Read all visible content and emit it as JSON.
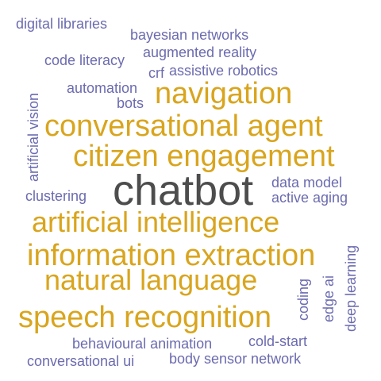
{
  "cloud": {
    "colors": {
      "main": "#4d4d4d",
      "gold": "#d9a51e",
      "purple": "#6b6bb0"
    },
    "words": {
      "chatbot": "chatbot",
      "artificial_intelligence": "artificial intelligence",
      "information_extraction": "information extraction",
      "conversational_agent": "conversational agent",
      "citizen_engagement": "citizen engagement",
      "speech_recognition": "speech recognition",
      "natural_language": "natural language",
      "navigation": "navigation",
      "digital_libraries": "digital libraries",
      "bayesian_networks": "bayesian networks",
      "code_literacy": "code literacy",
      "augmented_reality": "augmented reality",
      "crf": "crf",
      "assistive_robotics": "assistive robotics",
      "automation": "automation",
      "bots": "bots",
      "artificial_vision": "artificial vision",
      "data_model": "data model",
      "clustering": "clustering",
      "active_aging": "active aging",
      "coding": "coding",
      "edge_ai": "edge ai",
      "deep_learning": "deep learning",
      "behavioural_animation": "behavioural animation",
      "cold_start": "cold-start",
      "conversational_ui": "conversational ui",
      "body_sensor_network": "body sensor network"
    }
  }
}
